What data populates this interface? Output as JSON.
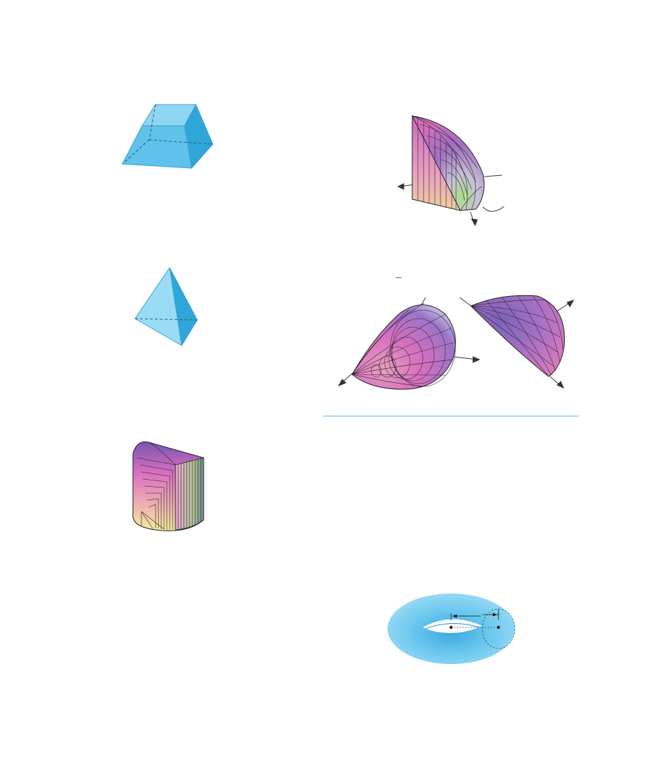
{
  "colors": {
    "solid_light": "#8fd6f2",
    "solid_mid": "#5fc2ea",
    "solid_dark": "#2fa6d8",
    "divider": "#a9dcef",
    "surface_magenta": "#d96fc0",
    "surface_violet": "#8a5fb8",
    "surface_yellow": "#f2ee9a",
    "surface_green": "#b8e08a",
    "mesh_line": "#222222"
  },
  "figures": [
    {
      "name": "frustum",
      "shape": "truncated-square-pyramid"
    },
    {
      "name": "tetrahedron",
      "shape": "tetrahedron"
    },
    {
      "name": "cut-cylinder-wedge",
      "shape": "cylinder-wedge-surface-plot"
    },
    {
      "name": "quarter-solid",
      "shape": "quarter-ellipsoid-surface-plot"
    },
    {
      "name": "teardrop-left",
      "shape": "teardrop-surface-plot"
    },
    {
      "name": "teardrop-right",
      "shape": "cone-dome-surface-plot"
    },
    {
      "name": "torus",
      "shape": "torus"
    }
  ]
}
